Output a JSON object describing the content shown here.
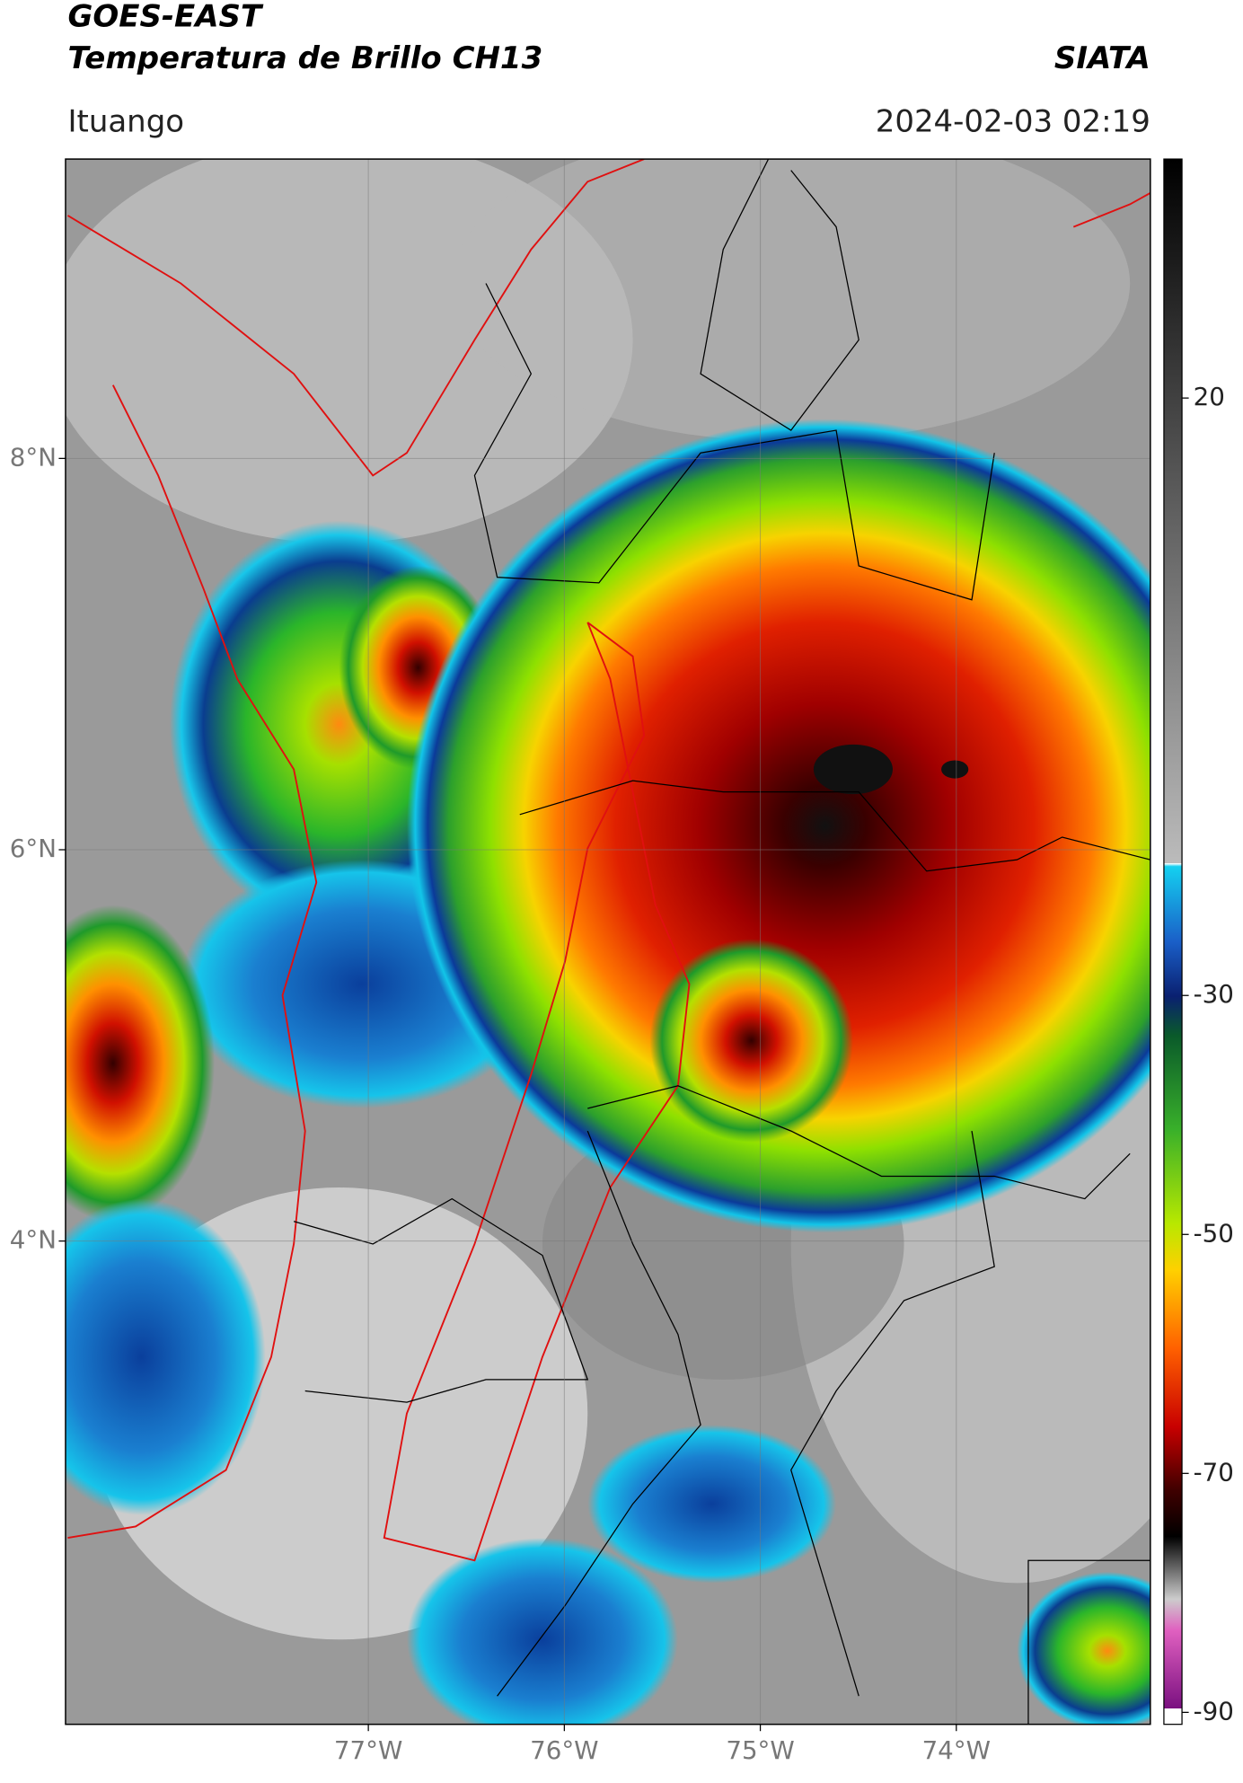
{
  "header": {
    "title": "GOES-EAST",
    "subtitle": "Temperatura de Brillo CH13",
    "source": "SIATA",
    "location": "Ituango",
    "datetime": "2024-02-03 02:19"
  },
  "map": {
    "lon_range": [
      -78.545,
      -73.01
    ],
    "lat_range": [
      1.53,
      9.53
    ],
    "lon_ticks": [
      {
        "value": -77,
        "label": "77°W"
      },
      {
        "value": -76,
        "label": "76°W"
      },
      {
        "value": -75,
        "label": "75°W"
      },
      {
        "value": -74,
        "label": "74°W"
      }
    ],
    "lat_ticks": [
      {
        "value": 8,
        "label": "8°N"
      },
      {
        "value": 6,
        "label": "6°N"
      },
      {
        "value": 4,
        "label": "4°N"
      }
    ]
  },
  "colorbar": {
    "lim": [
      -91,
      40
    ],
    "ticks": [
      20,
      -30,
      -50,
      -70,
      -90
    ]
  }
}
